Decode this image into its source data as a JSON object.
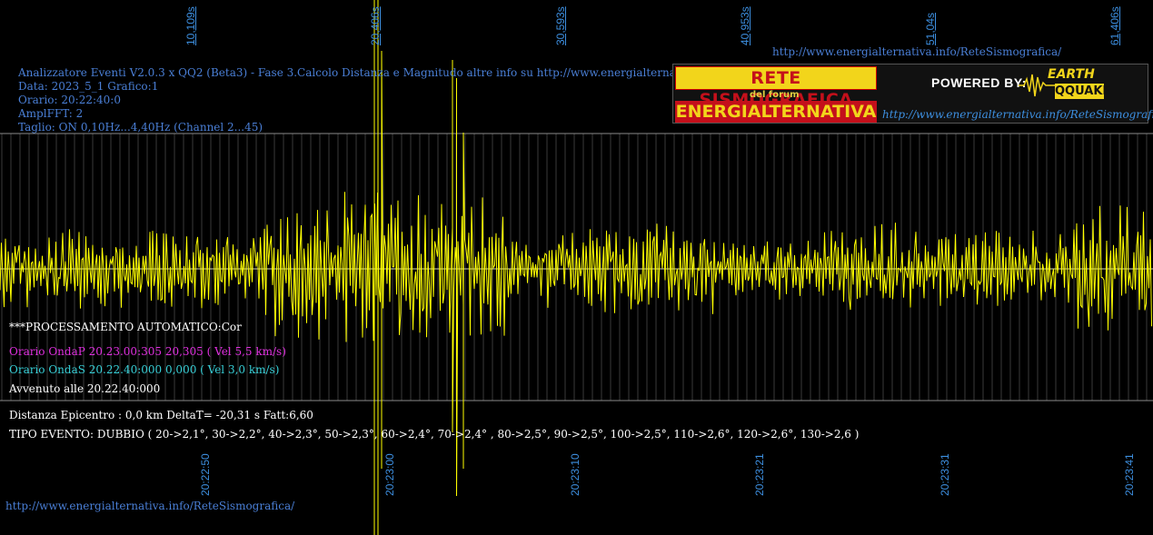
{
  "top_ticks": [
    "10,109s",
    "20,406s",
    "30,593s",
    "40,953s",
    "51,04s",
    "61,406s"
  ],
  "bottom_ticks": [
    "20:22:50",
    "20:23:00",
    "20:23:10",
    "20:23:21",
    "20:23:31",
    "20:23:41"
  ],
  "header": {
    "title": "Analizzatore Eventi V2.0.3 x QQ2 (Beta3) - Fase 3.Calcolo Distanza e Magnitudo altre info su http://www.energialternativa.info/ReteSism",
    "data": "Data: 2023_5_1 Grafico:1",
    "orario": "Orario: 20:22:40:0",
    "ampl": "AmplFFT: 2",
    "taglio": "Taglio: ON 0,10Hz...4,40Hz       (Channel 2...45)"
  },
  "top_url": "http://www.energialternativa.info/ReteSismografica/",
  "bottom_url": "http://www.energialternativa.info/ReteSismografica/",
  "logo": {
    "rete": "RETE SISMOGRAFICA",
    "forum": "del forum",
    "energ": "ENERGIALTERNATIVA",
    "powered": "POWERED BY:",
    "earth": "EARTH",
    "qquake": "QQUAKE",
    "url": "http://www.energialternativa.info/ReteSismografica"
  },
  "processing": {
    "auto": "***PROCESSAMENTO AUTOMATICO:Cor",
    "ondaP": "Orario OndaP 20.23.00:305  20,305 ( Vel 5,5 km/s)",
    "ondaS": "Orario OndaS 20.22.40:000  0,000 ( Vel 3,0 km/s)",
    "avvenuto": "Avvenuto alle 20.22.40:000",
    "distanza": "Distanza Epicentro : 0,0 km DeltaT= -20,31 s  Fatt:6,60",
    "tipo": "TIPO EVENTO: DUBBIO ( 20->2,1°, 30->2,2°, 40->2,3°, 50->2,3°, 60->2,4°, 70->2,4° , 80->2,5°, 90->2,5°, 100->2,5°, 110->2,6°, 120->2,6°, 130->2,6 )"
  },
  "colors": {
    "signal": "#ffff00",
    "grid": "#7a7a7a",
    "ticks": "#3d8fe0",
    "background": "#000000"
  }
}
